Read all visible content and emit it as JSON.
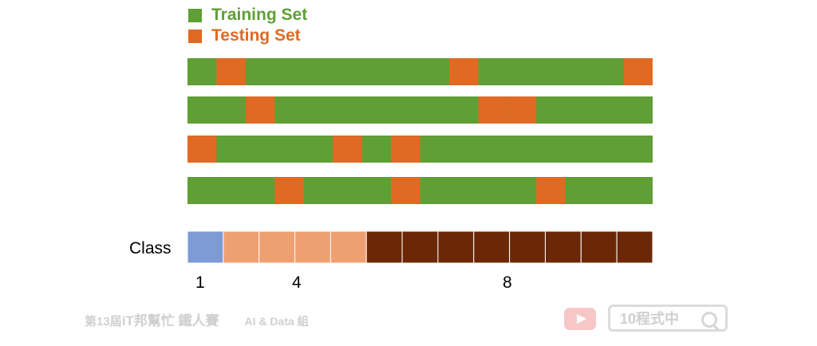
{
  "legend": {
    "training": {
      "label": "Training Set",
      "color": "#5f9f35"
    },
    "testing": {
      "label": "Testing Set",
      "color": "#e06a23"
    }
  },
  "folds": [
    {
      "rows": 16,
      "testing": [
        1,
        9,
        15
      ]
    },
    {
      "rows": 16,
      "testing": [
        2,
        10,
        11
      ]
    },
    {
      "rows": 16,
      "testing": [
        0,
        5,
        7
      ]
    },
    {
      "rows": 16,
      "testing": [
        3,
        7,
        12
      ]
    }
  ],
  "class_bar": {
    "label": "Class",
    "cells": [
      1,
      4,
      8
    ],
    "colors": [
      "#7f9bd6",
      "#efa073",
      "#6c2806"
    ],
    "numbers": [
      "1",
      "4",
      "8"
    ]
  },
  "footer": {
    "event": "第13屆",
    "brand": "iT邦幫忙 鐵人賽",
    "group": "AI & Data 組",
    "search_text": "10程式中"
  }
}
